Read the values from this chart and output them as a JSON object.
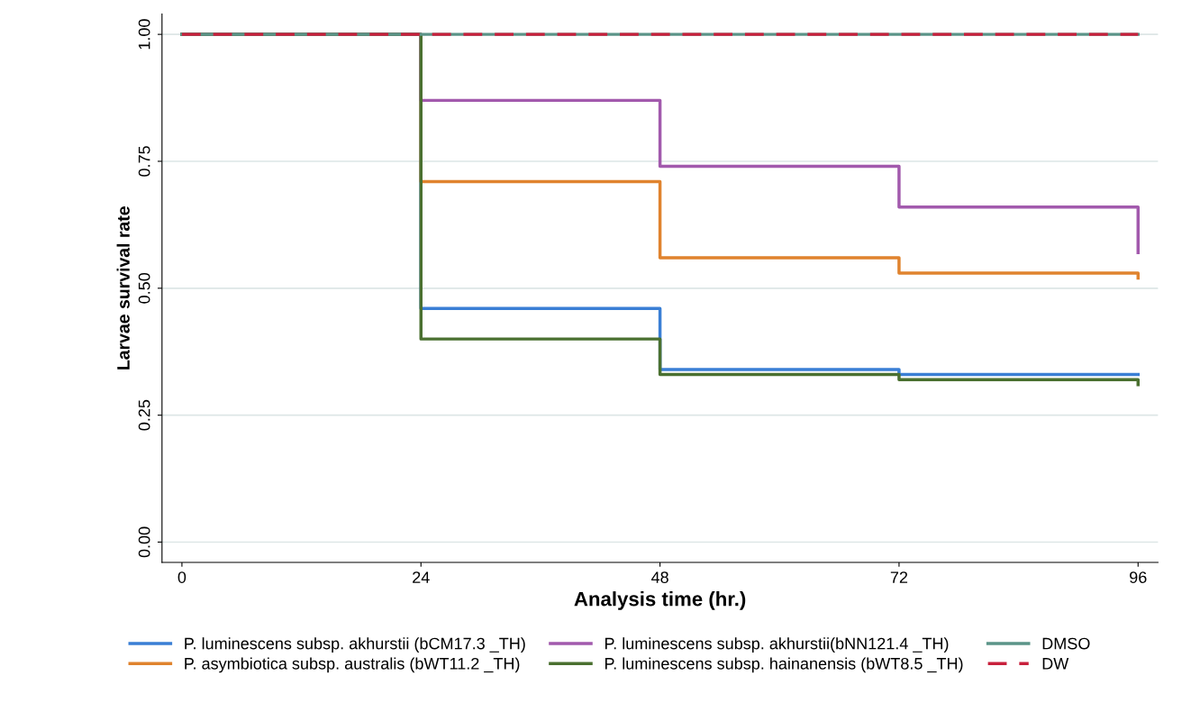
{
  "chart_data": {
    "type": "step",
    "xlabel": "Analysis time (hr.)",
    "ylabel": "Larvae survival rate",
    "xlim": [
      -2,
      98
    ],
    "xticks": [
      0,
      24,
      48,
      72,
      96
    ],
    "ylim": [
      -0.04,
      1.04
    ],
    "yticks": [
      {
        "value": 0,
        "label": "0.00"
      },
      {
        "value": 0.25,
        "label": "0.25"
      },
      {
        "value": 0.5,
        "label": "0.50"
      },
      {
        "value": 0.75,
        "label": "0.75"
      },
      {
        "value": 1,
        "label": "1.00"
      }
    ],
    "grid": "y",
    "legend": "bottom",
    "line_style": "solid",
    "series": [
      {
        "name": "P. luminescens subsp. akhurstii (bCM17.3 _TH)",
        "color": "#3a7fd5",
        "x": [
          0,
          24,
          48,
          72,
          96,
          96
        ],
        "values": [
          1,
          0.46,
          0.34,
          0.33,
          0.33,
          0.33
        ]
      },
      {
        "name": "P. asymbiotica subsp. australis (bWT11.2 _TH)",
        "color": "#e0832e",
        "x": [
          0,
          24,
          48,
          72,
          96,
          96
        ],
        "values": [
          1,
          0.71,
          0.56,
          0.53,
          0.53,
          0.52
        ]
      },
      {
        "name": "P. luminescens subsp. akhurstii(bNN121.4 _TH)",
        "color": "#a25aad",
        "x": [
          0,
          24,
          48,
          72,
          96,
          96
        ],
        "values": [
          1,
          0.87,
          0.74,
          0.66,
          0.66,
          0.57
        ]
      },
      {
        "name": "P. luminescens subsp. hainanensis (bWT8.5 _TH)",
        "color": "#4a7030",
        "x": [
          0,
          24,
          48,
          72,
          96,
          96
        ],
        "values": [
          1,
          0.4,
          0.33,
          0.32,
          0.32,
          0.31
        ]
      },
      {
        "name": "DMSO",
        "color": "#5b9488",
        "x": [
          0,
          96
        ],
        "values": [
          1,
          1
        ]
      },
      {
        "name": "DW",
        "color": "#c8203c",
        "x": [
          0,
          96
        ],
        "values": [
          1,
          1
        ],
        "line_style": "dashed"
      }
    ]
  }
}
